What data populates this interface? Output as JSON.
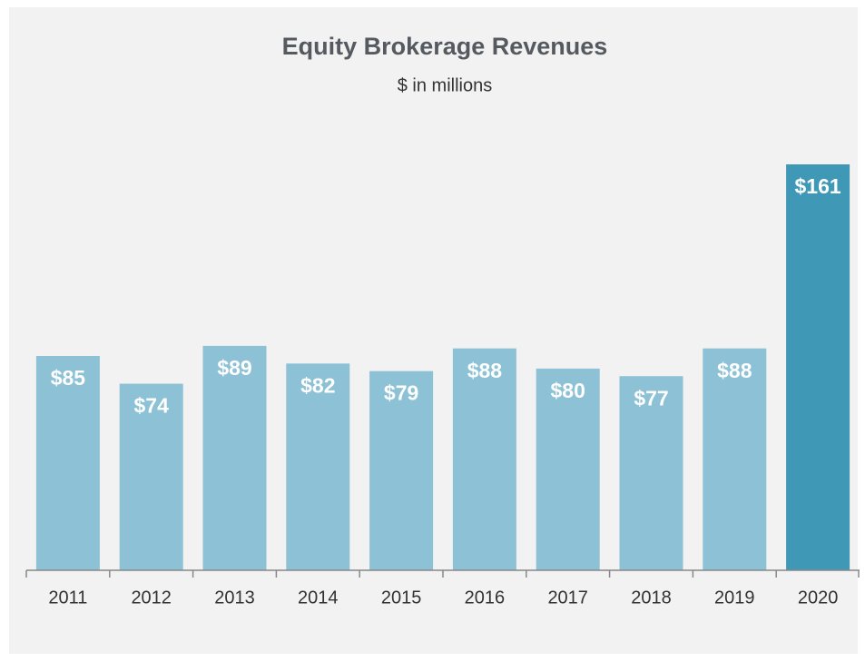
{
  "chart_data": {
    "type": "bar",
    "title": "Equity Brokerage Revenues",
    "subtitle": "$ in millions",
    "categories": [
      "2011",
      "2012",
      "2013",
      "2014",
      "2015",
      "2016",
      "2017",
      "2018",
      "2019",
      "2020"
    ],
    "values": [
      85,
      74,
      89,
      82,
      79,
      88,
      80,
      77,
      88,
      161
    ],
    "value_labels": [
      "$85",
      "$74",
      "$89",
      "$82",
      "$79",
      "$88",
      "$80",
      "$77",
      "$88",
      "$161"
    ],
    "colors": [
      "#8cc1d6",
      "#8cc1d6",
      "#8cc1d6",
      "#8cc1d6",
      "#8cc1d6",
      "#8cc1d6",
      "#8cc1d6",
      "#8cc1d6",
      "#8cc1d6",
      "#3f98b6"
    ],
    "grid": false
  }
}
